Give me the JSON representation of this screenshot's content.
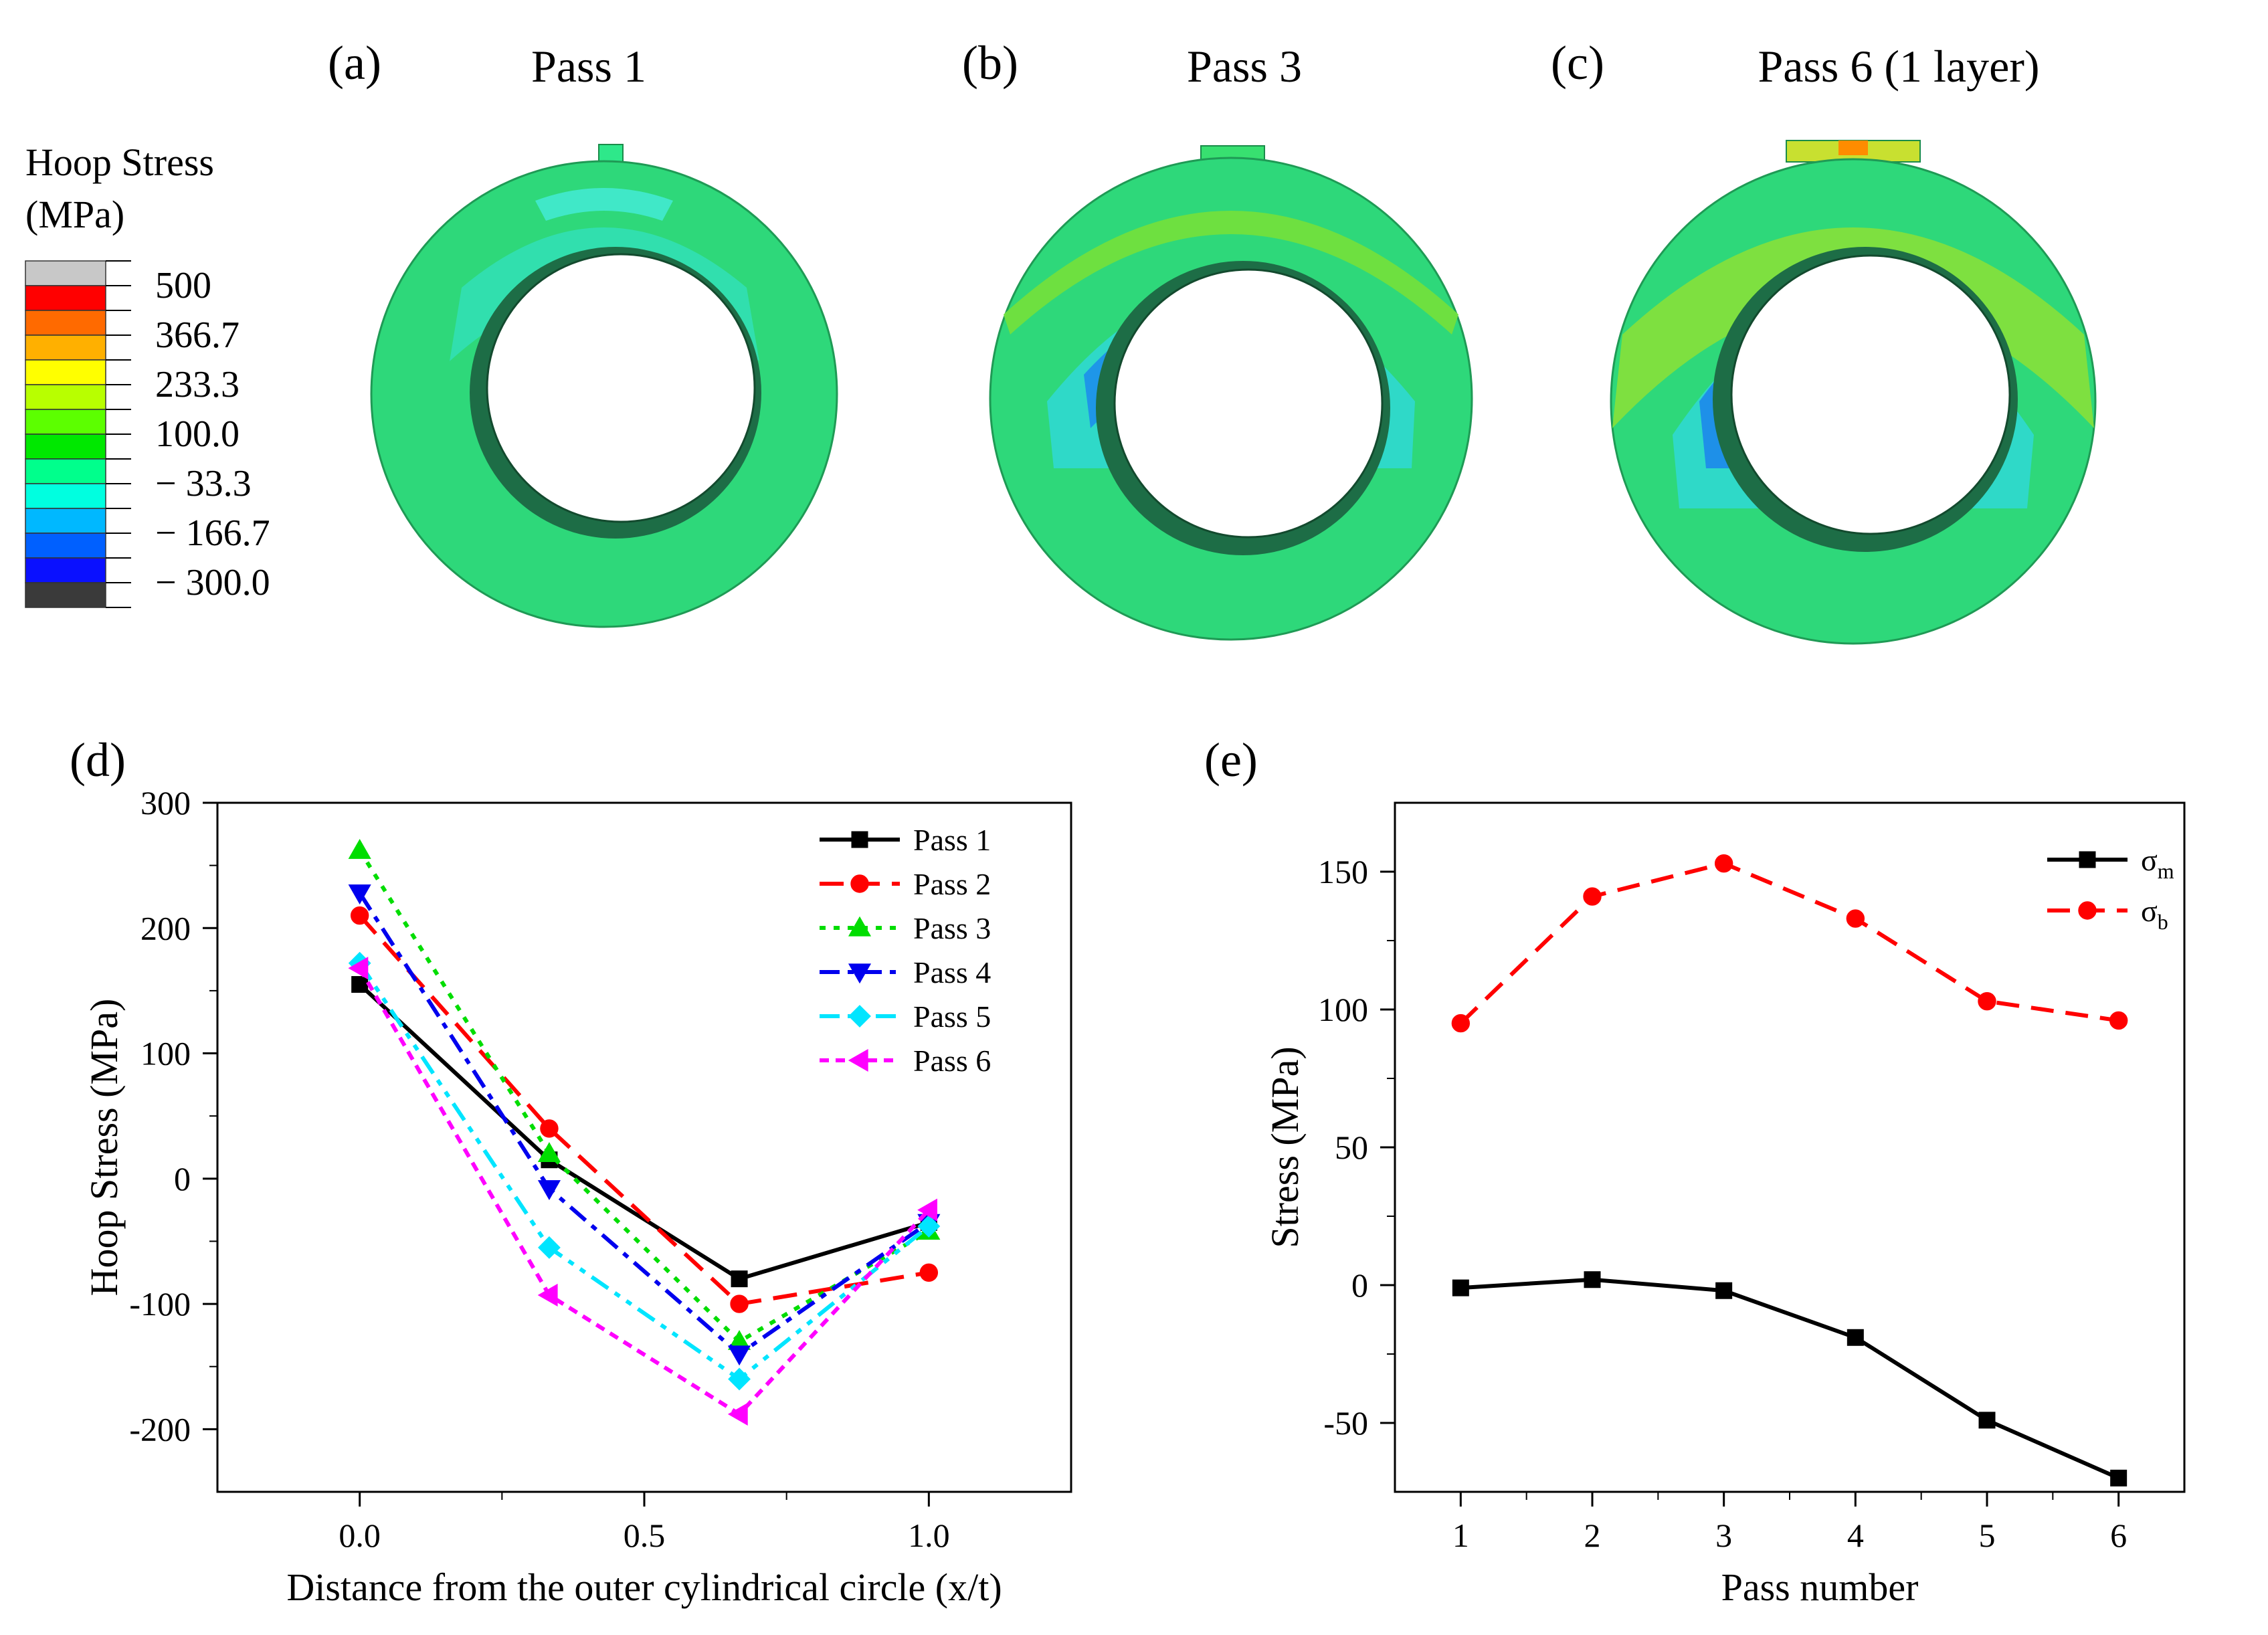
{
  "panels": {
    "a": {
      "letter": "(a)",
      "title": "Pass 1"
    },
    "b": {
      "letter": "(b)",
      "title": "Pass 3"
    },
    "c": {
      "letter": "(c)",
      "title": "Pass 6 (1 layer)"
    },
    "d": {
      "letter": "(d)"
    },
    "e": {
      "letter": "(e)"
    }
  },
  "contour_legend": {
    "title_line1": "Hoop Stress",
    "title_line2": "(MPa)",
    "labels": [
      "500",
      "366.7",
      "233.3",
      "100.0",
      "− 33.3",
      "− 166.7",
      "− 300.0"
    ],
    "colors": [
      "#c8c8c8",
      "#ff0000",
      "#ff6a00",
      "#ffb000",
      "#ffff00",
      "#b8ff00",
      "#5cff00",
      "#00e800",
      "#00ff8c",
      "#00ffe0",
      "#00b8ff",
      "#0060ff",
      "#0a10ff",
      "#3a3a3a"
    ]
  },
  "chart_data": [
    {
      "type": "line",
      "xlabel": "Distance from the outer cylindrical circle  (x/t)",
      "ylabel": "Hoop Stress (MPa)",
      "xlim": [
        -0.25,
        1.25
      ],
      "ylim": [
        -250,
        300
      ],
      "xticks": [
        "0.0",
        "0.5",
        "1.0"
      ],
      "yticks": [
        "-200",
        "-100",
        "0",
        "100",
        "200",
        "300"
      ],
      "x": [
        0.0,
        0.333,
        0.667,
        1.0
      ],
      "series": [
        {
          "name": "Pass 1",
          "values": [
            155,
            15,
            -80,
            -35
          ],
          "color": "#000000",
          "marker": "square",
          "dash": ""
        },
        {
          "name": "Pass 2",
          "values": [
            210,
            40,
            -100,
            -75
          ],
          "color": "#ff0000",
          "marker": "circle",
          "dash": "36,18"
        },
        {
          "name": "Pass 3",
          "values": [
            262,
            20,
            -130,
            -42
          ],
          "color": "#00dd00",
          "marker": "triangle-up",
          "dash": "9,12"
        },
        {
          "name": "Pass 4",
          "values": [
            228,
            -8,
            -140,
            -35
          ],
          "color": "#0000ee",
          "marker": "triangle-down",
          "dash": "30,12,9,12"
        },
        {
          "name": "Pass 5",
          "values": [
            172,
            -55,
            -160,
            -38
          ],
          "color": "#00e5ff",
          "marker": "diamond",
          "dash": "30,12,9,12,9,12"
        },
        {
          "name": "Pass 6",
          "values": [
            168,
            -93,
            -188,
            -25
          ],
          "color": "#ff00ff",
          "marker": "triangle-left",
          "dash": "14,10"
        }
      ]
    },
    {
      "type": "line",
      "xlabel": "Pass number",
      "ylabel": "Stress (MPa)",
      "xlim": [
        0.5,
        6.5
      ],
      "ylim": [
        -75,
        175
      ],
      "xticks": [
        "1",
        "2",
        "3",
        "4",
        "5",
        "6"
      ],
      "yticks": [
        "-50",
        "0",
        "50",
        "100",
        "150"
      ],
      "x": [
        1,
        2,
        3,
        4,
        5,
        6
      ],
      "series": [
        {
          "name": "σ",
          "sub": "m",
          "values": [
            -1,
            2,
            -2,
            -19,
            -49,
            -70
          ],
          "color": "#000000",
          "marker": "square",
          "dash": ""
        },
        {
          "name": "σ",
          "sub": "b",
          "values": [
            95,
            141,
            153,
            133,
            103,
            96
          ],
          "color": "#ff0000",
          "marker": "circle",
          "dash": "34,18"
        }
      ]
    }
  ]
}
